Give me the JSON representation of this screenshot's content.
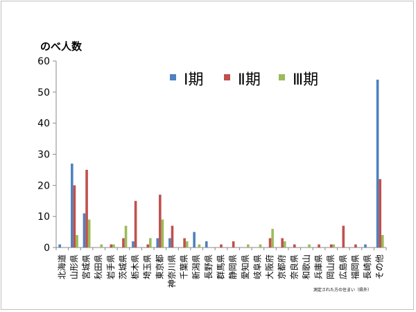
{
  "chart_data": {
    "type": "bar",
    "ylabel": "のべ人数",
    "ylim": [
      0,
      60
    ],
    "yticks": [
      0,
      10,
      20,
      30,
      40,
      50,
      60
    ],
    "grid": false,
    "legend_position": "top",
    "note": "測定された方の住まい（県外）",
    "categories": [
      "北海道",
      "山形県",
      "宮城県",
      "秋田県",
      "岩手県",
      "茨城県",
      "栃木県",
      "埼玉県",
      "東京都",
      "神奈川県",
      "千葉県",
      "新潟県",
      "長野県",
      "群馬県",
      "静岡県",
      "愛知県",
      "岐阜県",
      "大阪府",
      "京都府",
      "奈良県",
      "和歌山",
      "兵庫県",
      "岡山県",
      "広島県",
      "福岡県",
      "長崎県",
      "その他"
    ],
    "series": [
      {
        "name": "Ⅰ期",
        "color": "#4f81bd",
        "values": [
          1,
          27,
          11,
          0,
          0,
          0,
          2,
          0,
          3,
          3,
          0,
          5,
          2,
          0,
          0,
          0,
          0,
          0,
          0,
          0,
          0,
          0,
          0,
          0,
          0,
          1,
          54
        ]
      },
      {
        "name": "Ⅱ期",
        "color": "#c0504d",
        "values": [
          0,
          20,
          25,
          0,
          1,
          3,
          15,
          1,
          17,
          7,
          3,
          0,
          0,
          1,
          2,
          0,
          0,
          3,
          3,
          1,
          0,
          1,
          1,
          7,
          1,
          0,
          22
        ]
      },
      {
        "name": "Ⅲ期",
        "color": "#9bbb59",
        "values": [
          0,
          4,
          9,
          1,
          1,
          7,
          0,
          3,
          9,
          0,
          2,
          1,
          0,
          0,
          0,
          1,
          1,
          6,
          2,
          0,
          1,
          0,
          1,
          0,
          0,
          0,
          4
        ]
      }
    ]
  }
}
